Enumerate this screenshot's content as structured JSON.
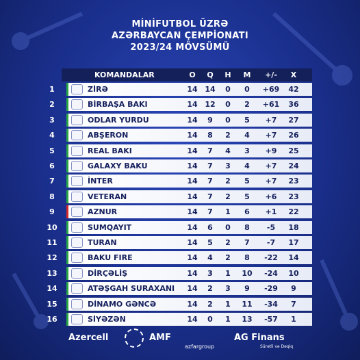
{
  "header": {
    "title_lines": [
      "MİNİFUTBOL ÜZRƏ",
      "AZƏRBAYCAN ÇEMPİONATI",
      "2023/24 MÖVSÜMÜ"
    ]
  },
  "table": {
    "columns": [
      "KOMANDALAR",
      "O",
      "Q",
      "H",
      "M",
      "+/-",
      "X"
    ],
    "rows": [
      [
        "1",
        "ZİRƏ",
        "14",
        "14",
        "0",
        "0",
        "+69",
        "42"
      ],
      [
        "2",
        "BİRBAŞA BAKI",
        "14",
        "12",
        "0",
        "2",
        "+61",
        "36"
      ],
      [
        "3",
        "ODLAR YURDU",
        "14",
        "9",
        "0",
        "5",
        "+7",
        "27"
      ],
      [
        "4",
        "ABŞERON",
        "14",
        "8",
        "2",
        "4",
        "+7",
        "26"
      ],
      [
        "5",
        "REAL BAKI",
        "14",
        "7",
        "4",
        "3",
        "+9",
        "25"
      ],
      [
        "6",
        "GALAXY BAKU",
        "14",
        "7",
        "3",
        "4",
        "+7",
        "24"
      ],
      [
        "7",
        "İNTER",
        "14",
        "7",
        "2",
        "5",
        "+7",
        "23"
      ],
      [
        "8",
        "VETERAN",
        "14",
        "7",
        "2",
        "5",
        "+6",
        "23"
      ],
      [
        "9",
        "AZNUR",
        "14",
        "7",
        "1",
        "6",
        "+1",
        "22"
      ],
      [
        "10",
        "SUMQAYIT",
        "14",
        "6",
        "0",
        "8",
        "-5",
        "18"
      ],
      [
        "11",
        "TURAN",
        "14",
        "5",
        "2",
        "7",
        "-7",
        "17"
      ],
      [
        "12",
        "BAKU FIRE",
        "14",
        "4",
        "2",
        "8",
        "-22",
        "14"
      ],
      [
        "13",
        "DİRÇƏLİŞ",
        "14",
        "3",
        "1",
        "10",
        "-24",
        "10"
      ],
      [
        "14",
        "ATƏŞGAH SURAXANI",
        "14",
        "2",
        "3",
        "9",
        "-29",
        "9"
      ],
      [
        "15",
        "DİNAMO GƏNCƏ",
        "14",
        "2",
        "1",
        "11",
        "-34",
        "7"
      ],
      [
        "16",
        "SİYƏZƏN",
        "14",
        "0",
        "1",
        "13",
        "-57",
        "1"
      ]
    ]
  },
  "footer": {
    "sponsors": [
      "Azercell",
      "AMF",
      "azfargroup",
      "AG Finans",
      "Sürətli və Dəqiq"
    ]
  }
}
